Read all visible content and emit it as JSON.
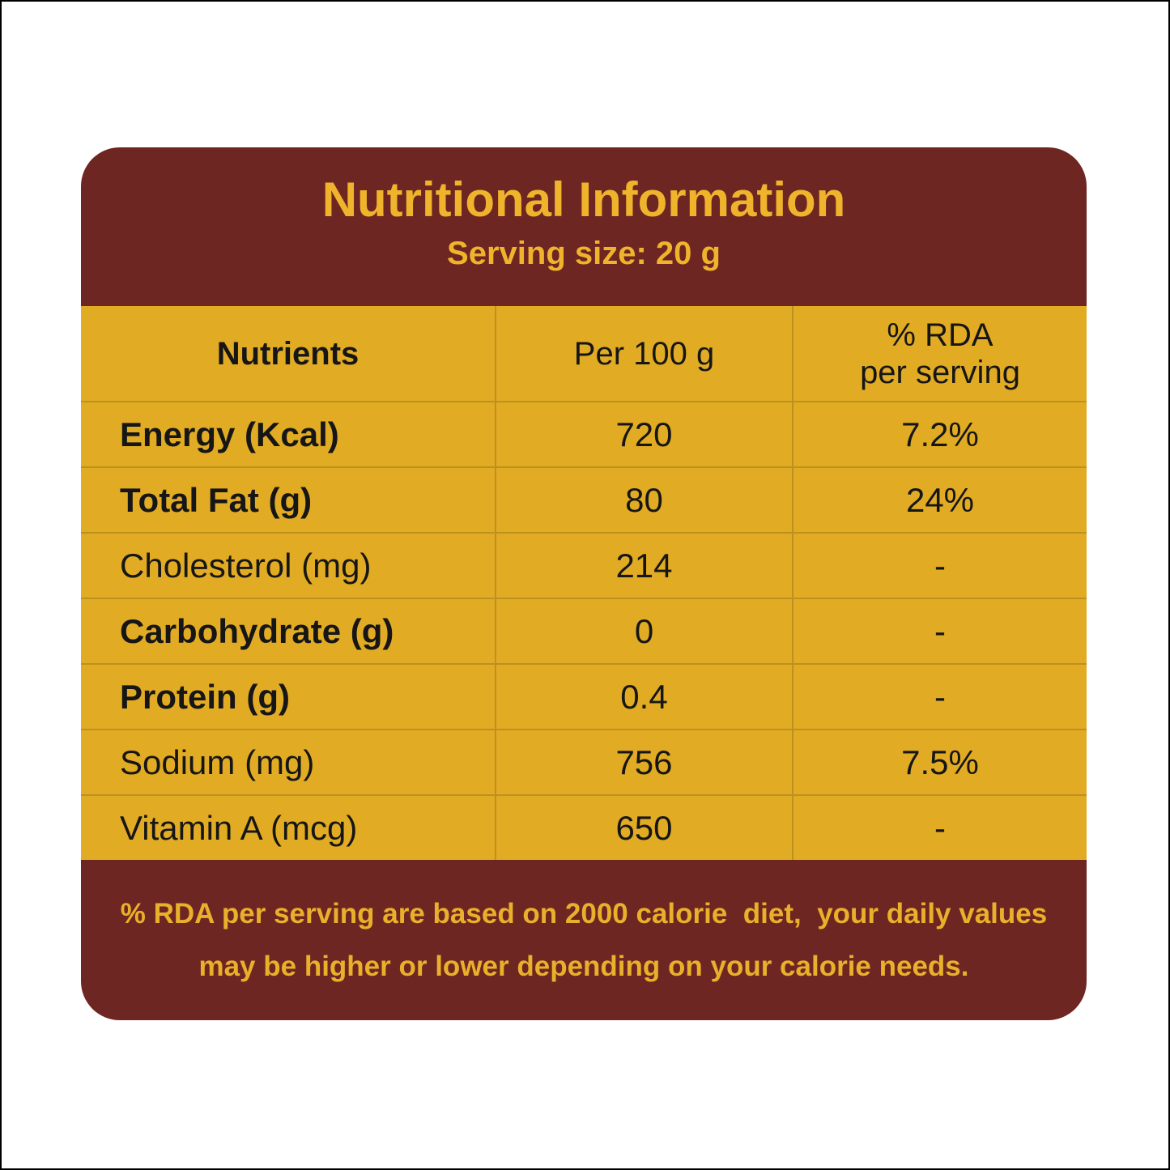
{
  "colors": {
    "maroon": "#6e2622",
    "gold_background": "#e2ab24",
    "yellow_text": "#efb42c",
    "divider": "#bd9120",
    "table_text": "#161616",
    "page_border": "#000000"
  },
  "header": {
    "title": "Nutritional Information",
    "serving_size": "Serving size: 20 g"
  },
  "table": {
    "header": {
      "col1": "Nutrients",
      "col2": "Per 100 g",
      "col3_line1": "% RDA",
      "col3_line2": "per serving"
    },
    "rows": [
      {
        "nutrient": "Energy (Kcal)",
        "per100": "720",
        "rda": "7.2%",
        "bold": true
      },
      {
        "nutrient": "Total Fat (g)",
        "per100": "80",
        "rda": "24%",
        "bold": true
      },
      {
        "nutrient": "Cholesterol (mg)",
        "per100": "214",
        "rda": "-",
        "bold": false
      },
      {
        "nutrient": "Carbohydrate (g)",
        "per100": "0",
        "rda": "-",
        "bold": true
      },
      {
        "nutrient": "Protein (g)",
        "per100": "0.4",
        "rda": "-",
        "bold": true
      },
      {
        "nutrient": "Sodium (mg)",
        "per100": "756",
        "rda": "7.5%",
        "bold": false
      },
      {
        "nutrient": "Vitamin A (mcg)",
        "per100": "650",
        "rda": "-",
        "bold": false
      }
    ]
  },
  "footer": {
    "line1": "% RDA per serving are based on 2000 calorie  diet,  your daily values",
    "line2": "may be higher or lower depending on your calorie needs."
  }
}
